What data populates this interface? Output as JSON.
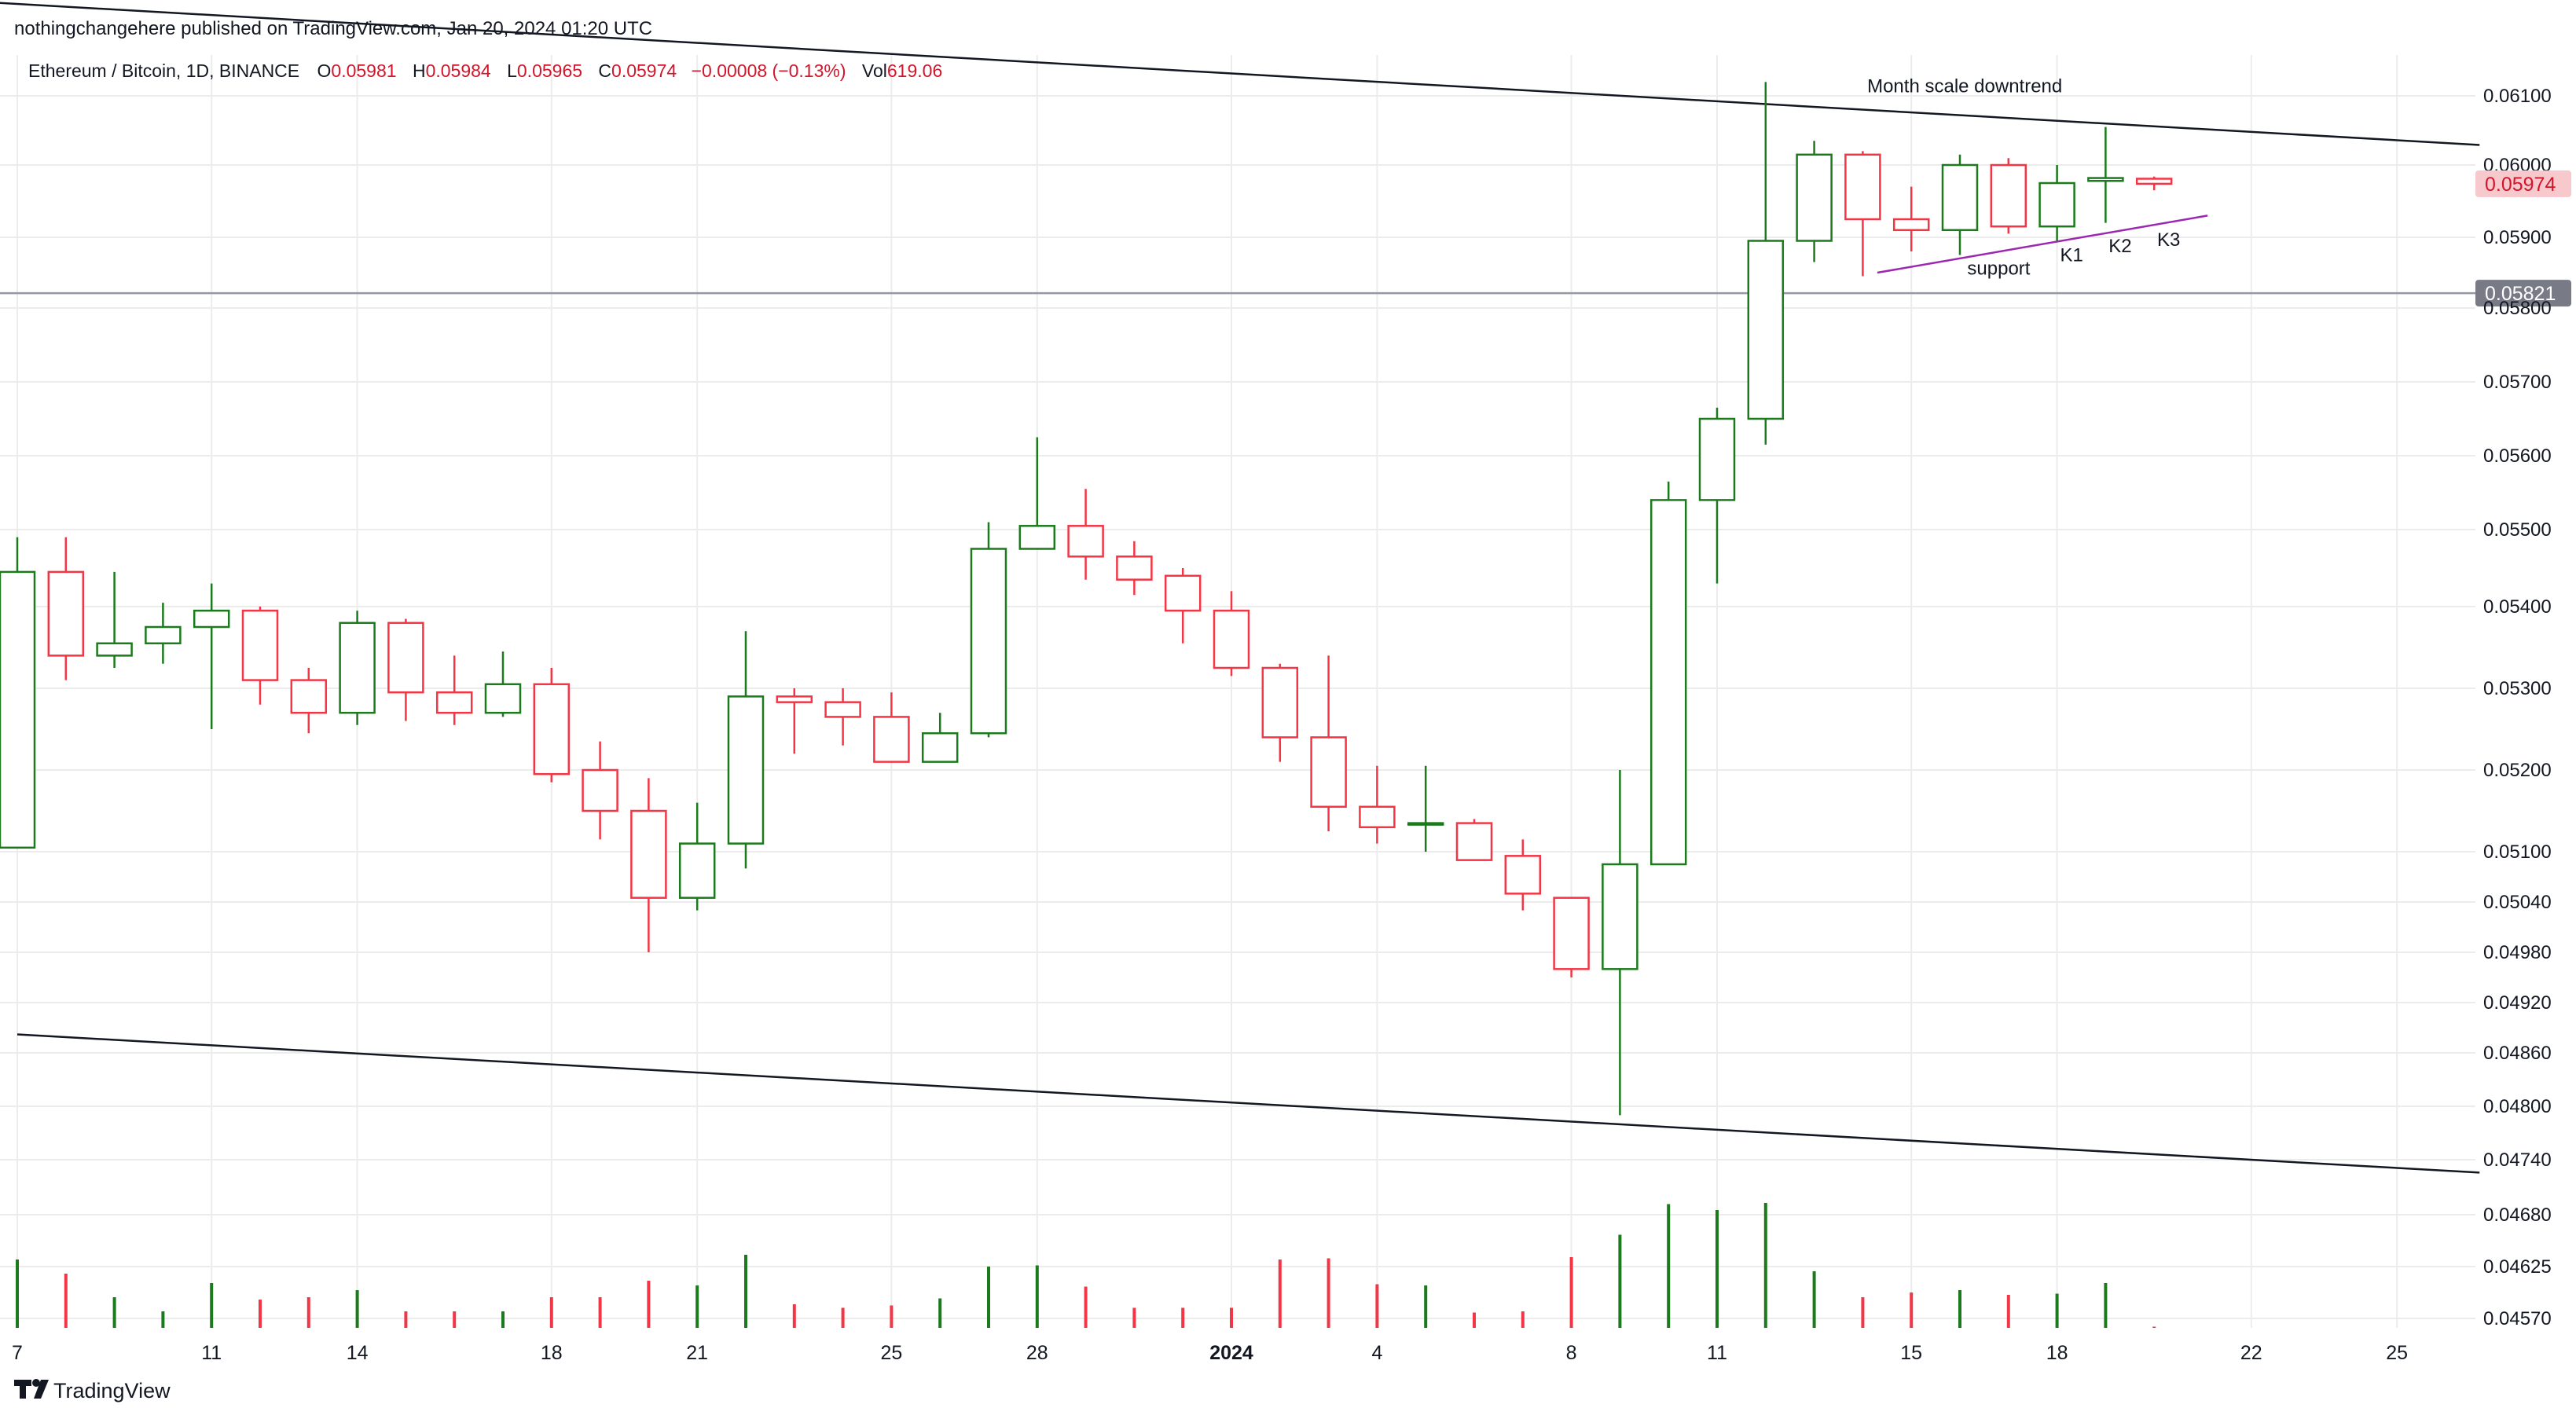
{
  "header": {
    "published": "nothingchangehere published on TradingView.com, Jan 20, 2024 01:20 UTC"
  },
  "legend": {
    "symbol": "Ethereum / Bitcoin, 1D, BINANCE",
    "o_label": "O",
    "o_value": "0.05981",
    "h_label": "H",
    "h_value": "0.05984",
    "l_label": "L",
    "l_value": "0.05965",
    "c_label": "C",
    "c_value": "0.05974",
    "change": "−0.00008 (−0.13%)",
    "vol_label": "Vol",
    "vol_value": "619.06"
  },
  "footer": {
    "brand": "TradingView"
  },
  "colors": {
    "up": "#1b7a1b",
    "down": "#f23645",
    "grid": "#ececec",
    "text": "#131722",
    "annotation_line": "#9c27b0",
    "price_badge_bg": "#f7c8cc",
    "price_badge_text": "#d1152a",
    "level_badge_bg": "#787b86",
    "level_badge_text": "#ffffff"
  },
  "chart_data": {
    "type": "candlestick",
    "title": "Ethereum / Bitcoin, 1D, BINANCE",
    "y_tick_labels": [
      "0.06100",
      "0.06000",
      "0.05900",
      "0.05800",
      "0.05700",
      "0.05600",
      "0.05500",
      "0.05400",
      "0.05300",
      "0.05200",
      "0.05100",
      "0.05040",
      "0.04980",
      "0.04920",
      "0.04860",
      "0.04800",
      "0.04740",
      "0.04680",
      "0.04625",
      "0.04570"
    ],
    "x_tick_labels": [
      {
        "i": 0,
        "label": "7"
      },
      {
        "i": 4,
        "label": "11"
      },
      {
        "i": 7,
        "label": "14"
      },
      {
        "i": 11,
        "label": "18"
      },
      {
        "i": 14,
        "label": "21"
      },
      {
        "i": 18,
        "label": "25"
      },
      {
        "i": 21,
        "label": "28"
      },
      {
        "i": 25,
        "label": "2024",
        "bold": true
      },
      {
        "i": 28,
        "label": "4"
      },
      {
        "i": 32,
        "label": "8"
      },
      {
        "i": 35,
        "label": "11"
      },
      {
        "i": 39,
        "label": "15"
      },
      {
        "i": 42,
        "label": "18"
      },
      {
        "i": 46,
        "label": "22"
      },
      {
        "i": 49,
        "label": "25"
      }
    ],
    "candles": [
      {
        "o": 0.05105,
        "h": 0.0549,
        "l": 0.05105,
        "c": 0.05445
      },
      {
        "o": 0.05445,
        "h": 0.0549,
        "l": 0.0531,
        "c": 0.0534
      },
      {
        "o": 0.0534,
        "h": 0.05445,
        "l": 0.05325,
        "c": 0.05355
      },
      {
        "o": 0.05355,
        "h": 0.05405,
        "l": 0.0533,
        "c": 0.05375
      },
      {
        "o": 0.05375,
        "h": 0.0543,
        "l": 0.0525,
        "c": 0.05395
      },
      {
        "o": 0.05395,
        "h": 0.054,
        "l": 0.0528,
        "c": 0.0531
      },
      {
        "o": 0.0531,
        "h": 0.05325,
        "l": 0.05245,
        "c": 0.0527
      },
      {
        "o": 0.0527,
        "h": 0.05395,
        "l": 0.05255,
        "c": 0.0538
      },
      {
        "o": 0.0538,
        "h": 0.05385,
        "l": 0.0526,
        "c": 0.05295
      },
      {
        "o": 0.05295,
        "h": 0.0534,
        "l": 0.05255,
        "c": 0.0527
      },
      {
        "o": 0.0527,
        "h": 0.05345,
        "l": 0.05265,
        "c": 0.05305
      },
      {
        "o": 0.05305,
        "h": 0.05325,
        "l": 0.05185,
        "c": 0.05195
      },
      {
        "o": 0.052,
        "h": 0.05235,
        "l": 0.05115,
        "c": 0.0515
      },
      {
        "o": 0.0515,
        "h": 0.0519,
        "l": 0.0498,
        "c": 0.05045
      },
      {
        "o": 0.05045,
        "h": 0.0516,
        "l": 0.0503,
        "c": 0.0511
      },
      {
        "o": 0.0511,
        "h": 0.0537,
        "l": 0.0508,
        "c": 0.0529
      },
      {
        "o": 0.0529,
        "h": 0.053,
        "l": 0.0522,
        "c": 0.05283
      },
      {
        "o": 0.05283,
        "h": 0.053,
        "l": 0.0523,
        "c": 0.05265
      },
      {
        "o": 0.05265,
        "h": 0.05295,
        "l": 0.0521,
        "c": 0.0521
      },
      {
        "o": 0.0521,
        "h": 0.0527,
        "l": 0.0521,
        "c": 0.05245
      },
      {
        "o": 0.05245,
        "h": 0.0551,
        "l": 0.0524,
        "c": 0.05475
      },
      {
        "o": 0.05475,
        "h": 0.05625,
        "l": 0.05475,
        "c": 0.05505
      },
      {
        "o": 0.05505,
        "h": 0.05555,
        "l": 0.05435,
        "c": 0.05465
      },
      {
        "o": 0.05465,
        "h": 0.05485,
        "l": 0.05415,
        "c": 0.05435
      },
      {
        "o": 0.0544,
        "h": 0.0545,
        "l": 0.05355,
        "c": 0.05395
      },
      {
        "o": 0.05395,
        "h": 0.0542,
        "l": 0.05315,
        "c": 0.05325
      },
      {
        "o": 0.05325,
        "h": 0.0533,
        "l": 0.0521,
        "c": 0.0524
      },
      {
        "o": 0.0524,
        "h": 0.0534,
        "l": 0.05125,
        "c": 0.05155
      },
      {
        "o": 0.05155,
        "h": 0.05205,
        "l": 0.0511,
        "c": 0.0513
      },
      {
        "o": 0.05135,
        "h": 0.05205,
        "l": 0.051,
        "c": 0.05135
      },
      {
        "o": 0.05135,
        "h": 0.0514,
        "l": 0.0509,
        "c": 0.0509
      },
      {
        "o": 0.05095,
        "h": 0.05115,
        "l": 0.0503,
        "c": 0.0505
      },
      {
        "o": 0.05045,
        "h": 0.05045,
        "l": 0.0495,
        "c": 0.0496
      },
      {
        "o": 0.0496,
        "h": 0.052,
        "l": 0.0479,
        "c": 0.05085
      },
      {
        "o": 0.05085,
        "h": 0.05565,
        "l": 0.05085,
        "c": 0.0554
      },
      {
        "o": 0.0554,
        "h": 0.05665,
        "l": 0.0543,
        "c": 0.0565
      },
      {
        "o": 0.0565,
        "h": 0.0612,
        "l": 0.05615,
        "c": 0.05895
      },
      {
        "o": 0.05895,
        "h": 0.06035,
        "l": 0.05865,
        "c": 0.06015
      },
      {
        "o": 0.06015,
        "h": 0.0602,
        "l": 0.05845,
        "c": 0.05925
      },
      {
        "o": 0.05925,
        "h": 0.0597,
        "l": 0.0588,
        "c": 0.0591
      },
      {
        "o": 0.0591,
        "h": 0.06015,
        "l": 0.05875,
        "c": 0.06
      },
      {
        "o": 0.06,
        "h": 0.0601,
        "l": 0.05905,
        "c": 0.05915
      },
      {
        "o": 0.05915,
        "h": 0.06,
        "l": 0.05895,
        "c": 0.05975
      },
      {
        "o": 0.05978,
        "h": 0.06055,
        "l": 0.0592,
        "c": 0.05982
      },
      {
        "o": 0.05981,
        "h": 0.05984,
        "l": 0.05965,
        "c": 0.05974
      }
    ],
    "volume_relative": [
      0.58,
      0.46,
      0.26,
      0.14,
      0.38,
      0.24,
      0.26,
      0.32,
      0.14,
      0.14,
      0.14,
      0.26,
      0.26,
      0.4,
      0.36,
      0.62,
      0.2,
      0.17,
      0.19,
      0.25,
      0.52,
      0.53,
      0.35,
      0.17,
      0.17,
      0.17,
      0.58,
      0.59,
      0.37,
      0.36,
      0.13,
      0.14,
      0.6,
      0.79,
      1.05,
      1.0,
      1.06,
      0.48,
      0.26,
      0.3,
      0.32,
      0.28,
      0.29,
      0.38,
      0.01
    ],
    "horizontal_level": {
      "value": 0.05821,
      "label": "0.05821"
    },
    "last_price": {
      "value": 0.05974,
      "label": "0.05974"
    },
    "trendlines": [
      {
        "name": "upper-downtrend-line",
        "from": {
          "i": -11.7,
          "price": 0.0628
        },
        "to": {
          "i": 50.7,
          "price": 0.06029
        }
      },
      {
        "name": "lower-channel-line",
        "from": {
          "i": 0,
          "price": 0.04882
        },
        "to": {
          "i": 50.7,
          "price": 0.04726
        }
      },
      {
        "name": "support-line",
        "from": {
          "i": 38.3,
          "price": 0.0585
        },
        "to": {
          "i": 45.1,
          "price": 0.0593
        }
      }
    ],
    "annotations": [
      {
        "name": "month-scale-downtrend-label",
        "text": "Month scale downtrend",
        "i": 40.1,
        "price": 0.06105
      },
      {
        "name": "support-label",
        "text": "support",
        "i": 40.8,
        "price": 0.05847
      },
      {
        "name": "k1-label",
        "text": "K1",
        "i": 42.3,
        "price": 0.05866
      },
      {
        "name": "k2-label",
        "text": "K2",
        "i": 43.3,
        "price": 0.05879
      },
      {
        "name": "k3-label",
        "text": "K3",
        "i": 44.3,
        "price": 0.05888
      }
    ]
  }
}
